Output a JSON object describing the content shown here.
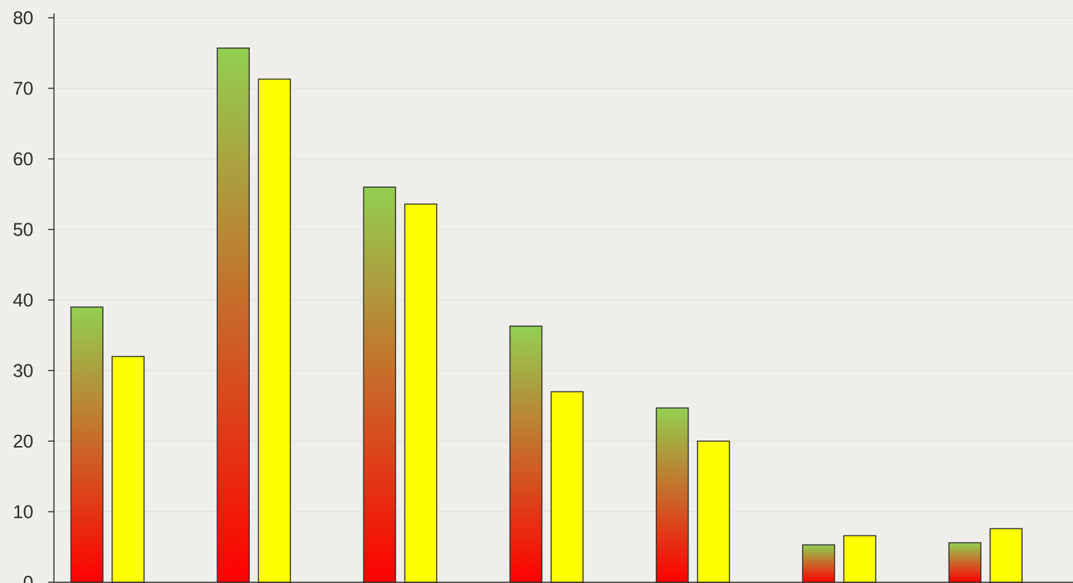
{
  "chart_data": {
    "type": "bar",
    "title": "",
    "xlabel": "",
    "ylabel": "",
    "ylim": [
      0,
      80
    ],
    "yticks": [
      0,
      10,
      20,
      30,
      40,
      50,
      60,
      70,
      80
    ],
    "categories": [
      "",
      "",
      "",
      "",
      "",
      "",
      ""
    ],
    "series": [
      {
        "values": [
          39,
          75.7,
          56,
          36.3,
          24.7,
          5.3,
          5.6
        ],
        "color_top": "#92d050",
        "color_bottom": "#ff0000"
      },
      {
        "values": [
          32,
          71.3,
          53.6,
          27,
          20,
          6.6,
          7.6
        ],
        "color": "#ffff00"
      }
    ],
    "grid": true,
    "legend": "none",
    "background": "#efeeea",
    "grid_color": "#e3e3e3",
    "bar_outline": "#333333",
    "axis_color": "#2b2b2b"
  }
}
